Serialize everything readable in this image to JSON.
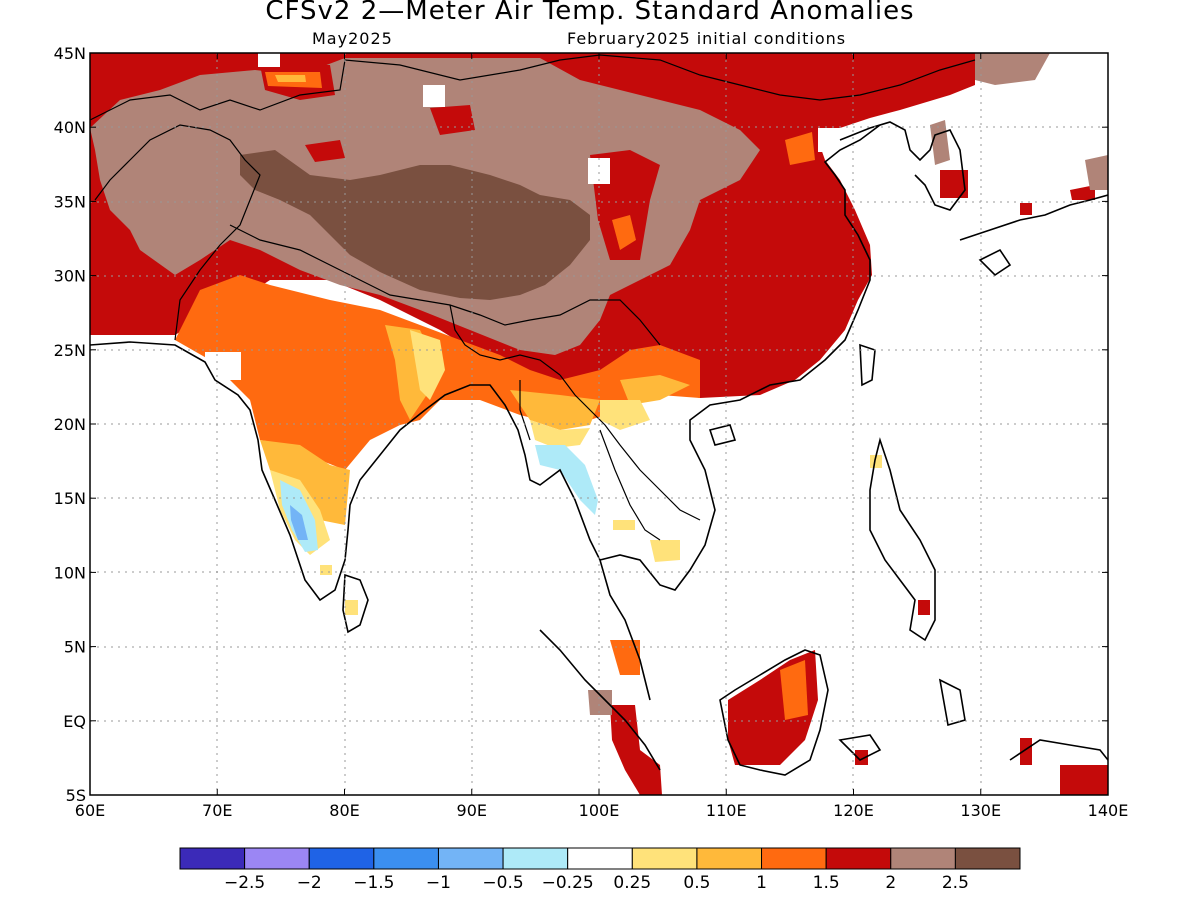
{
  "title": "CFSv2 2—Meter Air Temp. Standard Anomalies",
  "subtitle_left": "May2025",
  "subtitle_right": "February2025 initial conditions",
  "map": {
    "lon_range": [
      60,
      140
    ],
    "lat_range": [
      -5,
      45
    ],
    "lon_ticks": [
      {
        "value": 60,
        "label": "60E"
      },
      {
        "value": 70,
        "label": "70E"
      },
      {
        "value": 80,
        "label": "80E"
      },
      {
        "value": 90,
        "label": "90E"
      },
      {
        "value": 100,
        "label": "100E"
      },
      {
        "value": 110,
        "label": "110E"
      },
      {
        "value": 120,
        "label": "120E"
      },
      {
        "value": 130,
        "label": "130E"
      },
      {
        "value": 140,
        "label": "140E"
      }
    ],
    "lat_ticks": [
      {
        "value": 45,
        "label": "45N"
      },
      {
        "value": 40,
        "label": "40N"
      },
      {
        "value": 35,
        "label": "35N"
      },
      {
        "value": 30,
        "label": "30N"
      },
      {
        "value": 25,
        "label": "25N"
      },
      {
        "value": 20,
        "label": "20N"
      },
      {
        "value": 15,
        "label": "15N"
      },
      {
        "value": 10,
        "label": "10N"
      },
      {
        "value": 5,
        "label": "5N"
      },
      {
        "value": 0,
        "label": "EQ"
      },
      {
        "value": -5,
        "label": "5S"
      }
    ],
    "grid": true
  },
  "colorbar": {
    "colors": [
      "#3b2ab8",
      "#9b86f4",
      "#1f63e6",
      "#3b8ff0",
      "#73b4f6",
      "#aeeaf8",
      "#ffffff",
      "#ffe27a",
      "#ffb93a",
      "#ff6a10",
      "#c40a0a",
      "#b08478",
      "#7a5040"
    ],
    "labels": [
      "−2.5",
      "−2",
      "−1.5",
      "−1",
      "−0.5",
      "−0.25",
      "0.25",
      "0.5",
      "1",
      "1.5",
      "2",
      "2.5"
    ]
  },
  "colors": {
    "c025": "#ffe27a",
    "c05": "#ffb93a",
    "c1": "#ff6a10",
    "c15": "#c40a0a",
    "c2": "#b08478",
    "c25": "#7a5040",
    "cneg": "#aeeaf8",
    "cneg05": "#73b4f6"
  }
}
